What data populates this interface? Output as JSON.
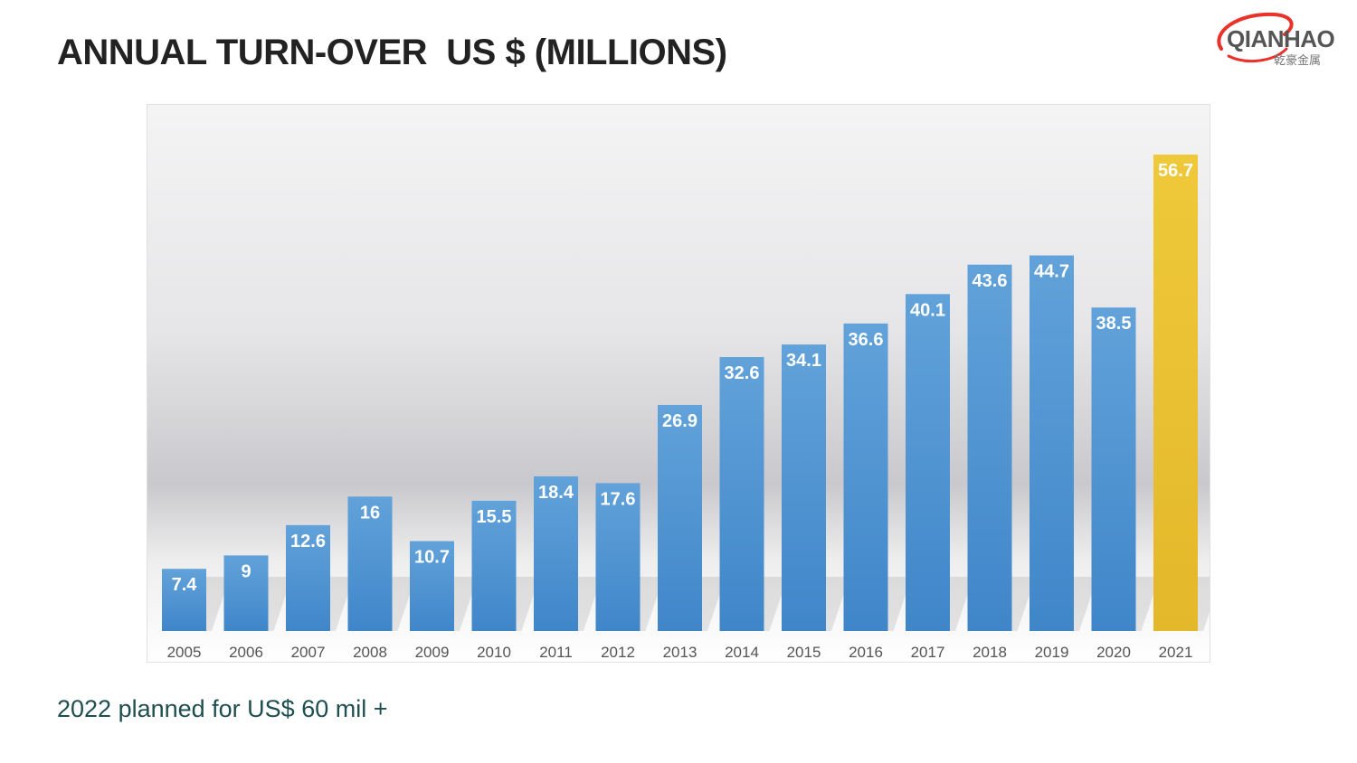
{
  "title": "ANNUAL TURN-OVER  US $ (MILLIONS)",
  "logo": {
    "name": "QIANHAO",
    "subtitle": "乾豪金属",
    "ring_color": "#e8322a"
  },
  "footnote": "2022 planned for US$ 60 mil +",
  "colors": {
    "bar": "#4f93d1",
    "bar_highlight": "#e9c132",
    "bar_label": "#ffffff",
    "tick_label": "#555555"
  },
  "chart_data": {
    "type": "bar",
    "title": "ANNUAL TURN-OVER  US $ (MILLIONS)",
    "xlabel": "",
    "ylabel": "",
    "ylim": [
      0,
      60
    ],
    "grid": false,
    "categories": [
      "2005",
      "2006",
      "2007",
      "2008",
      "2009",
      "2010",
      "2011",
      "2012",
      "2013",
      "2014",
      "2015",
      "2016",
      "2017",
      "2018",
      "2019",
      "2020",
      "2021"
    ],
    "values": [
      7.4,
      9,
      12.6,
      16,
      10.7,
      15.5,
      18.4,
      17.6,
      26.9,
      32.6,
      34.1,
      36.6,
      40.1,
      43.6,
      44.7,
      38.5,
      56.7
    ],
    "labels": [
      "7.4",
      "9",
      "12.6",
      "16",
      "10.7",
      "15.5",
      "18.4",
      "17.6",
      "26.9",
      "32.6",
      "34.1",
      "36.6",
      "40.1",
      "43.6",
      "44.7",
      "38.5",
      "56.7"
    ],
    "highlight": [
      "2021"
    ]
  }
}
